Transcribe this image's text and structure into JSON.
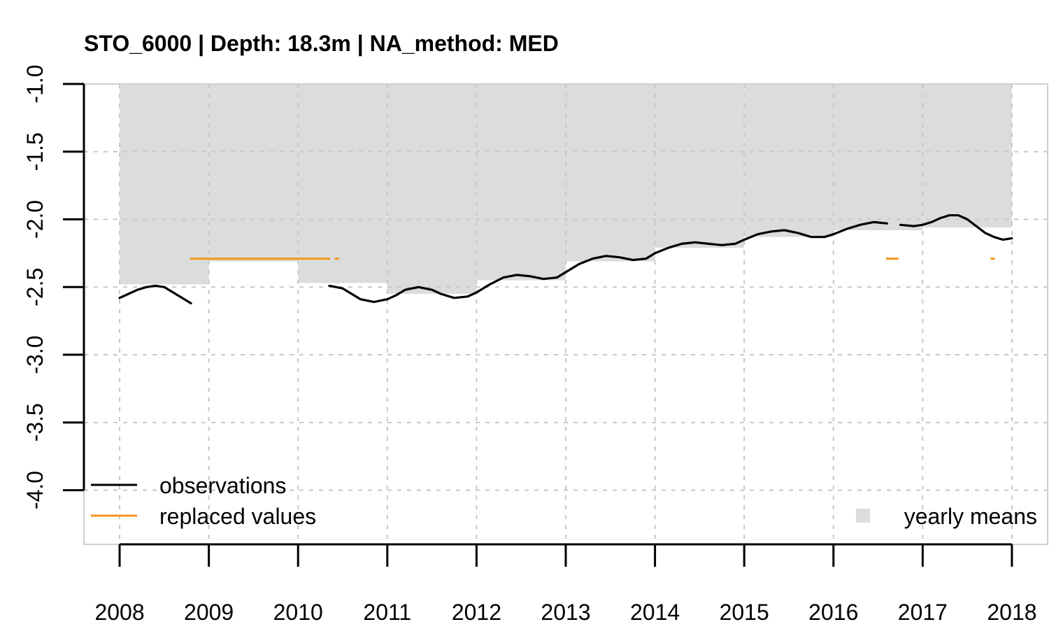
{
  "chart_data": {
    "type": "line",
    "title": "STO_6000 | Depth: 18.3m | NA_method: MED",
    "xlabel": "",
    "ylabel": "",
    "xlim": [
      2007.6,
      2018.4
    ],
    "ylim": [
      -4.4,
      -1.0
    ],
    "x_ticks": [
      {
        "value": 2008,
        "label": "2008"
      },
      {
        "value": 2009,
        "label": "2009"
      },
      {
        "value": 2010,
        "label": "2010"
      },
      {
        "value": 2011,
        "label": "2011"
      },
      {
        "value": 2012,
        "label": "2012"
      },
      {
        "value": 2013,
        "label": "2013"
      },
      {
        "value": 2014,
        "label": "2014"
      },
      {
        "value": 2015,
        "label": "2015"
      },
      {
        "value": 2016,
        "label": "2016"
      },
      {
        "value": 2017,
        "label": "2017"
      },
      {
        "value": 2018,
        "label": "2018"
      }
    ],
    "y_ticks": [
      {
        "value": -1.0,
        "label": "-1.0"
      },
      {
        "value": -1.5,
        "label": "-1.5"
      },
      {
        "value": -2.0,
        "label": "-2.0"
      },
      {
        "value": -2.5,
        "label": "-2.5"
      },
      {
        "value": -3.0,
        "label": "-3.0"
      },
      {
        "value": -3.5,
        "label": "-3.5"
      },
      {
        "value": -4.0,
        "label": "-4.0"
      }
    ],
    "grid": true,
    "legend": [
      {
        "label": "observations",
        "color": "#000000",
        "symbol": "line"
      },
      {
        "label": "replaced values",
        "color": "#f0961e",
        "symbol": "line"
      },
      {
        "label": "yearly means",
        "color": "#dcdcdc",
        "symbol": "square"
      }
    ],
    "series": [
      {
        "name": "yearly means",
        "type": "bar",
        "color": "#dcdcdc",
        "segments": [
          {
            "x0": 2008,
            "x1": 2009,
            "y": -2.48
          },
          {
            "x0": 2009,
            "x1": 2010,
            "y": -2.31
          },
          {
            "x0": 2010,
            "x1": 2011,
            "y": -2.47
          },
          {
            "x0": 2011,
            "x1": 2012,
            "y": -2.55
          },
          {
            "x0": 2012,
            "x1": 2013,
            "y": -2.45
          },
          {
            "x0": 2013,
            "x1": 2014,
            "y": -2.31
          },
          {
            "x0": 2014,
            "x1": 2015,
            "y": -2.21
          },
          {
            "x0": 2015,
            "x1": 2016,
            "y": -2.13
          },
          {
            "x0": 2016,
            "x1": 2017,
            "y": -2.08
          },
          {
            "x0": 2017,
            "x1": 2018,
            "y": -2.06
          }
        ]
      },
      {
        "name": "observations",
        "type": "line",
        "color": "#000000",
        "segments": [
          [
            [
              2008.0,
              -2.58
            ],
            [
              2008.1,
              -2.55
            ],
            [
              2008.2,
              -2.52
            ],
            [
              2008.3,
              -2.5
            ],
            [
              2008.4,
              -2.49
            ],
            [
              2008.5,
              -2.5
            ],
            [
              2008.6,
              -2.54
            ],
            [
              2008.7,
              -2.58
            ],
            [
              2008.8,
              -2.62
            ]
          ],
          [
            [
              2010.35,
              -2.49
            ],
            [
              2010.5,
              -2.51
            ],
            [
              2010.6,
              -2.55
            ],
            [
              2010.7,
              -2.59
            ],
            [
              2010.85,
              -2.61
            ],
            [
              2011.0,
              -2.59
            ],
            [
              2011.1,
              -2.56
            ],
            [
              2011.2,
              -2.52
            ],
            [
              2011.35,
              -2.5
            ],
            [
              2011.5,
              -2.52
            ],
            [
              2011.6,
              -2.55
            ],
            [
              2011.75,
              -2.58
            ],
            [
              2011.9,
              -2.57
            ],
            [
              2012.0,
              -2.54
            ],
            [
              2012.15,
              -2.48
            ],
            [
              2012.3,
              -2.43
            ],
            [
              2012.45,
              -2.41
            ],
            [
              2012.6,
              -2.42
            ],
            [
              2012.75,
              -2.44
            ],
            [
              2012.9,
              -2.43
            ],
            [
              2013.0,
              -2.39
            ],
            [
              2013.15,
              -2.33
            ],
            [
              2013.3,
              -2.29
            ],
            [
              2013.45,
              -2.27
            ],
            [
              2013.6,
              -2.28
            ],
            [
              2013.75,
              -2.3
            ],
            [
              2013.9,
              -2.29
            ],
            [
              2014.0,
              -2.25
            ],
            [
              2014.15,
              -2.21
            ],
            [
              2014.3,
              -2.18
            ],
            [
              2014.45,
              -2.17
            ],
            [
              2014.6,
              -2.18
            ],
            [
              2014.75,
              -2.19
            ],
            [
              2014.9,
              -2.18
            ],
            [
              2015.0,
              -2.15
            ],
            [
              2015.15,
              -2.11
            ],
            [
              2015.3,
              -2.09
            ],
            [
              2015.45,
              -2.08
            ],
            [
              2015.6,
              -2.1
            ],
            [
              2015.75,
              -2.13
            ],
            [
              2015.9,
              -2.13
            ],
            [
              2016.0,
              -2.11
            ],
            [
              2016.15,
              -2.07
            ],
            [
              2016.3,
              -2.04
            ],
            [
              2016.45,
              -2.02
            ],
            [
              2016.6,
              -2.03
            ]
          ],
          [
            [
              2016.75,
              -2.04
            ],
            [
              2016.9,
              -2.05
            ],
            [
              2017.0,
              -2.04
            ],
            [
              2017.1,
              -2.02
            ],
            [
              2017.2,
              -1.99
            ],
            [
              2017.3,
              -1.97
            ],
            [
              2017.4,
              -1.97
            ],
            [
              2017.5,
              -2.0
            ],
            [
              2017.6,
              -2.05
            ],
            [
              2017.7,
              -2.1
            ],
            [
              2017.8,
              -2.13
            ],
            [
              2017.9,
              -2.15
            ],
            [
              2018.0,
              -2.14
            ]
          ]
        ]
      },
      {
        "name": "replaced values",
        "type": "line",
        "color": "#f0961e",
        "segments": [
          [
            [
              2008.8,
              -2.29
            ],
            [
              2010.35,
              -2.29
            ]
          ],
          [
            [
              2010.42,
              -2.29
            ],
            [
              2010.45,
              -2.29
            ]
          ],
          [
            [
              2016.6,
              -2.29
            ],
            [
              2016.72,
              -2.29
            ]
          ],
          [
            [
              2017.77,
              -2.29
            ],
            [
              2017.8,
              -2.29
            ]
          ]
        ]
      }
    ]
  }
}
